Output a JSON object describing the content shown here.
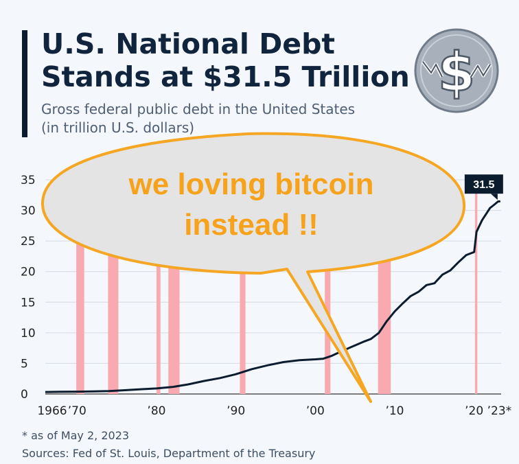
{
  "header": {
    "title_line1": "U.S. National Debt",
    "title_line2": "Stands at $31.5 Trillion",
    "subtitle_line1": "Gross federal public debt in the United States",
    "subtitle_line2": "(in trillion U.S. dollars)"
  },
  "logo_icon": "dollar-down-icon",
  "footer": {
    "footnote": "* as of May 2, 2023",
    "sources": "Sources: Fed of St. Louis, Department of the Treasury"
  },
  "speech_bubble": {
    "line1": "we loving bitcoin",
    "line2": "instead !!"
  },
  "colors": {
    "line": "#0b1c2f",
    "recession": "#f8aab0",
    "bubble_fill": "#e4e4e4",
    "bubble_stroke": "#f5a623",
    "bubble_text": "#f7a21b"
  },
  "chart_data": {
    "type": "line",
    "title": "U.S. National Debt Stands at $31.5 Trillion",
    "subtitle": "Gross federal public debt in the United States (in trillion U.S. dollars)",
    "xlabel": "",
    "ylabel": "",
    "xlim": [
      1966,
      2023.4
    ],
    "ylim": [
      0,
      35
    ],
    "yticks": [
      0,
      5,
      10,
      15,
      20,
      25,
      30,
      35
    ],
    "xticks": [
      {
        "value": 1966,
        "label": "1966"
      },
      {
        "value": 1970,
        "label": "’70"
      },
      {
        "value": 1980,
        "label": "’80"
      },
      {
        "value": 1990,
        "label": "’90"
      },
      {
        "value": 2000,
        "label": "’00"
      },
      {
        "value": 2010,
        "label": "’10"
      },
      {
        "value": 2020,
        "label": "’20"
      },
      {
        "value": 2023,
        "label": "’23*"
      }
    ],
    "grid": true,
    "recession_bands": [
      [
        1969.9,
        1970.9
      ],
      [
        1973.9,
        1975.2
      ],
      [
        1980.0,
        1980.5
      ],
      [
        1981.5,
        1982.9
      ],
      [
        1990.5,
        1991.2
      ],
      [
        2001.2,
        2001.9
      ],
      [
        2007.9,
        2009.5
      ],
      [
        2020.1,
        2020.4
      ]
    ],
    "series": [
      {
        "values": [
          [
            1966,
            0.32
          ],
          [
            1968,
            0.36
          ],
          [
            1970,
            0.38
          ],
          [
            1972,
            0.43
          ],
          [
            1974,
            0.48
          ],
          [
            1976,
            0.62
          ],
          [
            1978,
            0.77
          ],
          [
            1980,
            0.91
          ],
          [
            1982,
            1.14
          ],
          [
            1984,
            1.57
          ],
          [
            1986,
            2.13
          ],
          [
            1988,
            2.6
          ],
          [
            1990,
            3.23
          ],
          [
            1992,
            4.06
          ],
          [
            1994,
            4.69
          ],
          [
            1996,
            5.22
          ],
          [
            1998,
            5.53
          ],
          [
            2000,
            5.67
          ],
          [
            2001,
            5.77
          ],
          [
            2002,
            6.2
          ],
          [
            2003,
            6.8
          ],
          [
            2004,
            7.38
          ],
          [
            2005,
            7.93
          ],
          [
            2006,
            8.5
          ],
          [
            2007,
            9.0
          ],
          [
            2008,
            10.0
          ],
          [
            2009,
            11.9
          ],
          [
            2010,
            13.5
          ],
          [
            2011,
            14.8
          ],
          [
            2012,
            16.0
          ],
          [
            2013,
            16.7
          ],
          [
            2014,
            17.8
          ],
          [
            2015,
            18.1
          ],
          [
            2016,
            19.5
          ],
          [
            2017,
            20.2
          ],
          [
            2018,
            21.5
          ],
          [
            2019,
            22.7
          ],
          [
            2020.0,
            23.2
          ],
          [
            2020.3,
            26.5
          ],
          [
            2021,
            28.4
          ],
          [
            2022,
            30.4
          ],
          [
            2022.5,
            30.9
          ],
          [
            2023,
            31.46
          ],
          [
            2023.3,
            31.5
          ]
        ]
      }
    ],
    "annotations": [
      {
        "x": 2023.3,
        "y": 31.5,
        "label": "31.5"
      }
    ]
  }
}
